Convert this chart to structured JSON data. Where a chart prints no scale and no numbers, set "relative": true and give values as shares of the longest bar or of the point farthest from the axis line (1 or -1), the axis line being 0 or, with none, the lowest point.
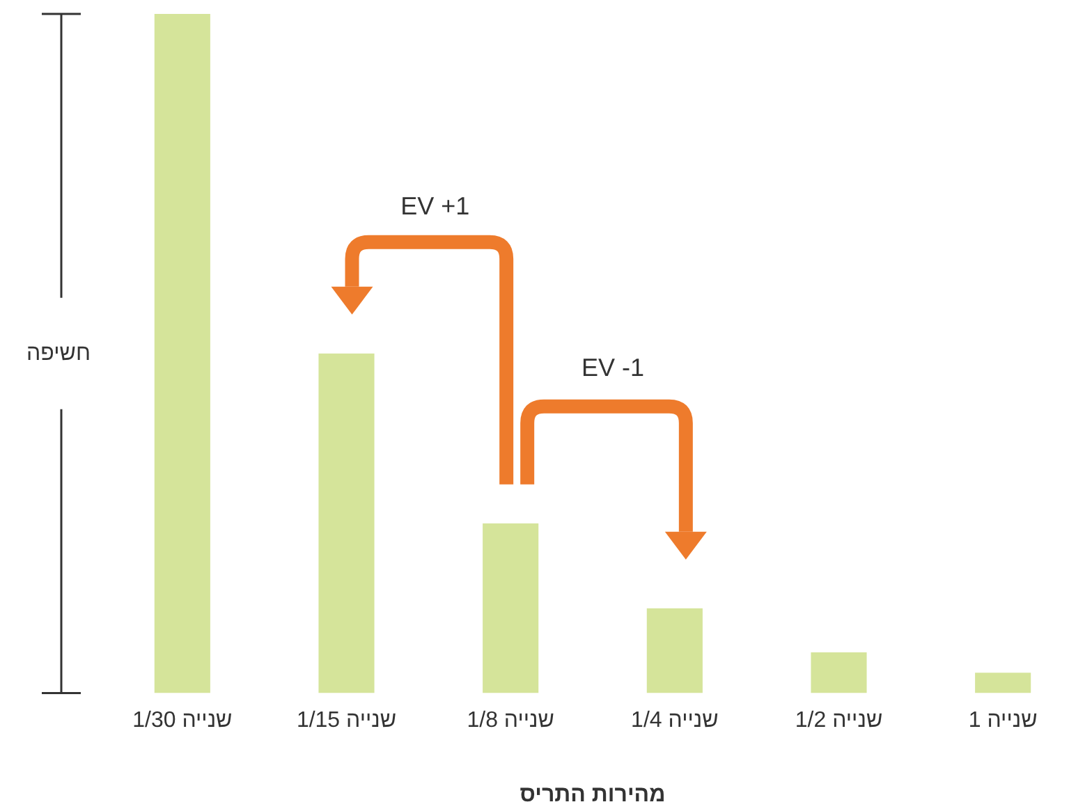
{
  "chart_data": {
    "type": "bar",
    "relative": true,
    "categories": [
      "1/30 שנייה",
      "1/15 שנייה",
      "1/8 שנייה",
      "1/4 שנייה",
      "1/2 שנייה",
      "1 שנייה"
    ],
    "values": [
      1,
      0.5,
      0.25,
      0.125,
      0.06,
      0.03
    ],
    "color": "#d5e49a",
    "xlabel": "מהירות התריס",
    "ylabel": "חשיפה",
    "annotations": [
      "EV +1",
      "EV -1"
    ],
    "grid": false,
    "legend": false
  }
}
